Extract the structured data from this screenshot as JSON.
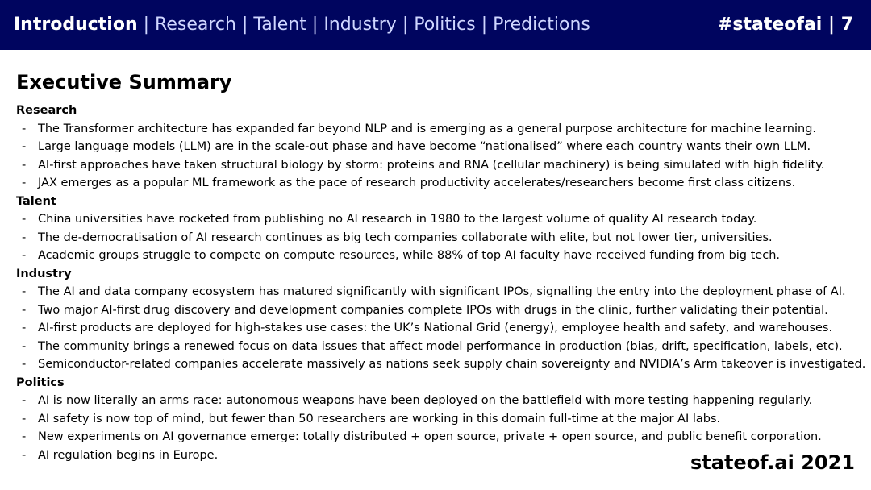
{
  "header": {
    "nav": [
      {
        "label": "Introduction",
        "active": true
      },
      {
        "label": "Research",
        "active": false
      },
      {
        "label": "Talent",
        "active": false
      },
      {
        "label": "Industry",
        "active": false
      },
      {
        "label": "Politics",
        "active": false
      },
      {
        "label": "Predictions",
        "active": false
      }
    ],
    "separator": "|",
    "brand": "#stateofai | 7"
  },
  "slide": {
    "title": "Executive Summary",
    "footer": "stateof.ai 2021",
    "sections": [
      {
        "heading": "Research",
        "items": [
          "The Transformer architecture has expanded far beyond NLP and is emerging as a general purpose architecture for machine learning.",
          "Large language models (LLM) are in the scale-out phase and have become “nationalised” where each country wants their own LLM.",
          "AI-first approaches have taken structural biology by storm: proteins and RNA (cellular machinery) is being simulated with high fidelity.",
          "JAX emerges as a popular ML framework as the pace of research productivity accelerates/researchers become first class citizens."
        ]
      },
      {
        "heading": "Talent",
        "items": [
          "China universities have rocketed from publishing no AI research in 1980 to the largest volume of quality AI research today.",
          "The de-democratisation of AI research continues as big tech companies collaborate with elite, but not lower tier, universities.",
          "Academic groups struggle to compete on compute resources, while 88% of top AI faculty have received funding from big tech."
        ]
      },
      {
        "heading": "Industry",
        "items": [
          "The AI and data company ecosystem has matured significantly with significant IPOs, signalling the entry into the deployment phase of AI.",
          "Two major AI-first drug discovery and development companies complete IPOs with drugs in the clinic, further validating their potential.",
          "AI-first products are deployed for high-stakes use cases: the UK’s National Grid (energy), employee health and safety, and warehouses.",
          "The community brings a renewed focus on data issues that affect model performance in production (bias, drift, specification, labels, etc).",
          "Semiconductor-related companies accelerate massively as nations seek supply chain sovereignty and NVIDIA’s Arm takeover is investigated."
        ]
      },
      {
        "heading": "Politics",
        "items": [
          "AI is now literally an arms race: autonomous weapons have been deployed on the battlefield with more testing happening regularly.",
          "AI safety is now top of mind, but fewer than 50 researchers are working in this domain full-time at the major AI labs.",
          "New experiments on AI governance emerge: totally distributed + open source, private + open source, and public benefit corporation.",
          "AI regulation begins in Europe."
        ]
      }
    ]
  },
  "colors": {
    "header_bg": "#00055f",
    "nav_inactive": "#cfd6ff",
    "nav_active": "#ffffff",
    "body_text": "#000000"
  }
}
